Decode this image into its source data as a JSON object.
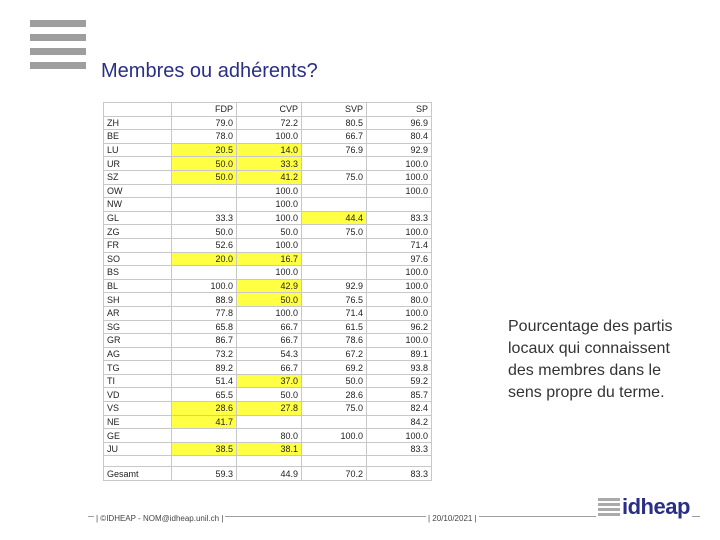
{
  "slide": {
    "title": "Membres ou adhérents?",
    "note": "Pourcentage des partis locaux qui connaissent des membres dans le sens propre du terme."
  },
  "table": {
    "headers": [
      "",
      "FDP",
      "CVP",
      "SVP",
      "SP"
    ],
    "rows": [
      {
        "canton": "ZH",
        "values": [
          "79.0",
          "72.2",
          "80.5",
          "96.9"
        ],
        "highlight": [
          false,
          false,
          false,
          false
        ]
      },
      {
        "canton": "BE",
        "values": [
          "78.0",
          "100.0",
          "66.7",
          "80.4"
        ],
        "highlight": [
          false,
          false,
          false,
          false
        ]
      },
      {
        "canton": "LU",
        "values": [
          "20.5",
          "14.0",
          "76.9",
          "92.9"
        ],
        "highlight": [
          true,
          true,
          false,
          false
        ]
      },
      {
        "canton": "UR",
        "values": [
          "50.0",
          "33.3",
          "",
          "100.0"
        ],
        "highlight": [
          true,
          true,
          false,
          false
        ]
      },
      {
        "canton": "SZ",
        "values": [
          "50.0",
          "41.2",
          "75.0",
          "100.0"
        ],
        "highlight": [
          true,
          true,
          false,
          false
        ]
      },
      {
        "canton": "OW",
        "values": [
          "",
          "100.0",
          "",
          "100.0"
        ],
        "highlight": [
          false,
          false,
          false,
          false
        ]
      },
      {
        "canton": "NW",
        "values": [
          "",
          "100.0",
          "",
          ""
        ],
        "highlight": [
          false,
          false,
          false,
          false
        ]
      },
      {
        "canton": "GL",
        "values": [
          "33.3",
          "100.0",
          "44.4",
          "83.3"
        ],
        "highlight": [
          false,
          false,
          true,
          false
        ]
      },
      {
        "canton": "ZG",
        "values": [
          "50.0",
          "50.0",
          "75.0",
          "100.0"
        ],
        "highlight": [
          false,
          false,
          false,
          false
        ]
      },
      {
        "canton": "FR",
        "values": [
          "52.6",
          "100.0",
          "",
          "71.4"
        ],
        "highlight": [
          false,
          false,
          false,
          false
        ]
      },
      {
        "canton": "SO",
        "values": [
          "20.0",
          "16.7",
          "",
          "97.6"
        ],
        "highlight": [
          true,
          true,
          false,
          false
        ]
      },
      {
        "canton": "BS",
        "values": [
          "",
          "100.0",
          "",
          "100.0"
        ],
        "highlight": [
          false,
          false,
          false,
          false
        ]
      },
      {
        "canton": "BL",
        "values": [
          "100.0",
          "42.9",
          "92.9",
          "100.0"
        ],
        "highlight": [
          false,
          true,
          false,
          false
        ]
      },
      {
        "canton": "SH",
        "values": [
          "88.9",
          "50.0",
          "76.5",
          "80.0"
        ],
        "highlight": [
          false,
          true,
          false,
          false
        ]
      },
      {
        "canton": "AR",
        "values": [
          "77.8",
          "100.0",
          "71.4",
          "100.0"
        ],
        "highlight": [
          false,
          false,
          false,
          false
        ]
      },
      {
        "canton": "SG",
        "values": [
          "65.8",
          "66.7",
          "61.5",
          "96.2"
        ],
        "highlight": [
          false,
          false,
          false,
          false
        ]
      },
      {
        "canton": "GR",
        "values": [
          "86.7",
          "66.7",
          "78.6",
          "100.0"
        ],
        "highlight": [
          false,
          false,
          false,
          false
        ]
      },
      {
        "canton": "AG",
        "values": [
          "73.2",
          "54.3",
          "67.2",
          "89.1"
        ],
        "highlight": [
          false,
          false,
          false,
          false
        ]
      },
      {
        "canton": "TG",
        "values": [
          "89.2",
          "66.7",
          "69.2",
          "93.8"
        ],
        "highlight": [
          false,
          false,
          false,
          false
        ]
      },
      {
        "canton": "TI",
        "values": [
          "51.4",
          "37.0",
          "50.0",
          "59.2"
        ],
        "highlight": [
          false,
          true,
          false,
          false
        ]
      },
      {
        "canton": "VD",
        "values": [
          "65.5",
          "50.0",
          "28.6",
          "85.7"
        ],
        "highlight": [
          false,
          false,
          false,
          false
        ]
      },
      {
        "canton": "VS",
        "values": [
          "28.6",
          "27.8",
          "75.0",
          "82.4"
        ],
        "highlight": [
          true,
          true,
          false,
          false
        ]
      },
      {
        "canton": "NE",
        "values": [
          "41.7",
          "",
          "",
          "84.2"
        ],
        "highlight": [
          true,
          false,
          false,
          false
        ]
      },
      {
        "canton": "GE",
        "values": [
          "",
          "80.0",
          "100.0",
          "100.0"
        ],
        "highlight": [
          false,
          false,
          false,
          false
        ]
      },
      {
        "canton": "JU",
        "values": [
          "38.5",
          "38.1",
          "",
          "83.3"
        ],
        "highlight": [
          true,
          true,
          false,
          false
        ]
      }
    ],
    "total": {
      "canton": "Gesamt",
      "values": [
        "59.3",
        "44.9",
        "70.2",
        "83.3"
      ]
    }
  },
  "footer": {
    "left": "| ©IDHEAP - NOM@idheap.unil.ch |",
    "date": "| 20/10/2021 |",
    "logo_text": "idheap"
  },
  "colors": {
    "title": "#2a2f86",
    "highlight": "#ffff44",
    "menu_bars": "#9e9e9e"
  }
}
